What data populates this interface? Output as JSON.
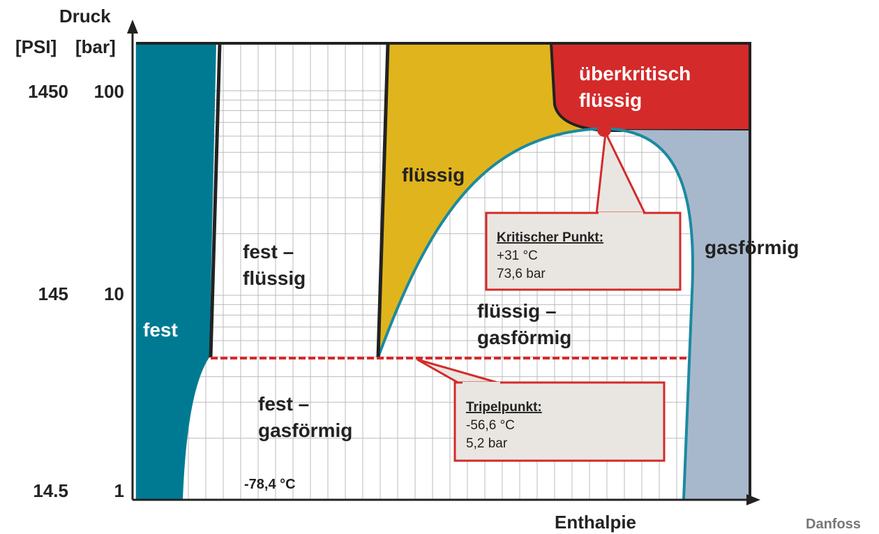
{
  "axes": {
    "y_title": "Druck",
    "y_units": [
      "[PSI]",
      "[bar]"
    ],
    "y_labels": [
      {
        "psi": "1450",
        "bar": "100"
      },
      {
        "psi": "145",
        "bar": "10"
      },
      {
        "psi": "14.5",
        "bar": "1"
      }
    ],
    "x_title": "Enthalpie"
  },
  "regions": [
    {
      "lines": [
        "fest"
      ]
    },
    {
      "lines": [
        "fest –",
        "flüssig"
      ]
    },
    {
      "lines": [
        "flüssig"
      ]
    },
    {
      "lines": [
        "überkritisch",
        "flüssig"
      ]
    },
    {
      "lines": [
        "gasförmig"
      ]
    },
    {
      "lines": [
        "flüssig –",
        "gasförmig"
      ]
    },
    {
      "lines": [
        "fest –",
        "gasförmig"
      ]
    }
  ],
  "temperature_note": "-78,4 °C",
  "callouts": [
    {
      "title": "Kritischer Punkt:",
      "lines": [
        "+31 °C",
        "73,6 bar"
      ]
    },
    {
      "title": "Tripelpunkt:",
      "lines": [
        "-56,6 °C",
        "5,2 bar"
      ]
    }
  ],
  "source": "Danfoss"
}
